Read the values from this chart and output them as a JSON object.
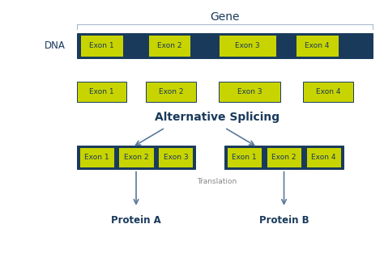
{
  "bg_color": "#ffffff",
  "exon_fill": "#c8d400",
  "exon_edge": "#1a3a5c",
  "intron_fill": "#1a3a5c",
  "text_color": "#1a3a5c",
  "arrow_color": "#5a7a9a",
  "gene_label": "Gene",
  "dna_label": "DNA",
  "alt_splicing_label": "Alternative Splicing",
  "translation_label": "Translation",
  "protein_a_label": "Protein A",
  "protein_b_label": "Protein B",
  "exon_labels": [
    "Exon 1",
    "Exon 2",
    "Exon 3",
    "Exon 4"
  ],
  "font_size_tiny": 6.5,
  "font_size_small": 7.5,
  "font_size_medium": 8.5,
  "font_size_large": 10
}
